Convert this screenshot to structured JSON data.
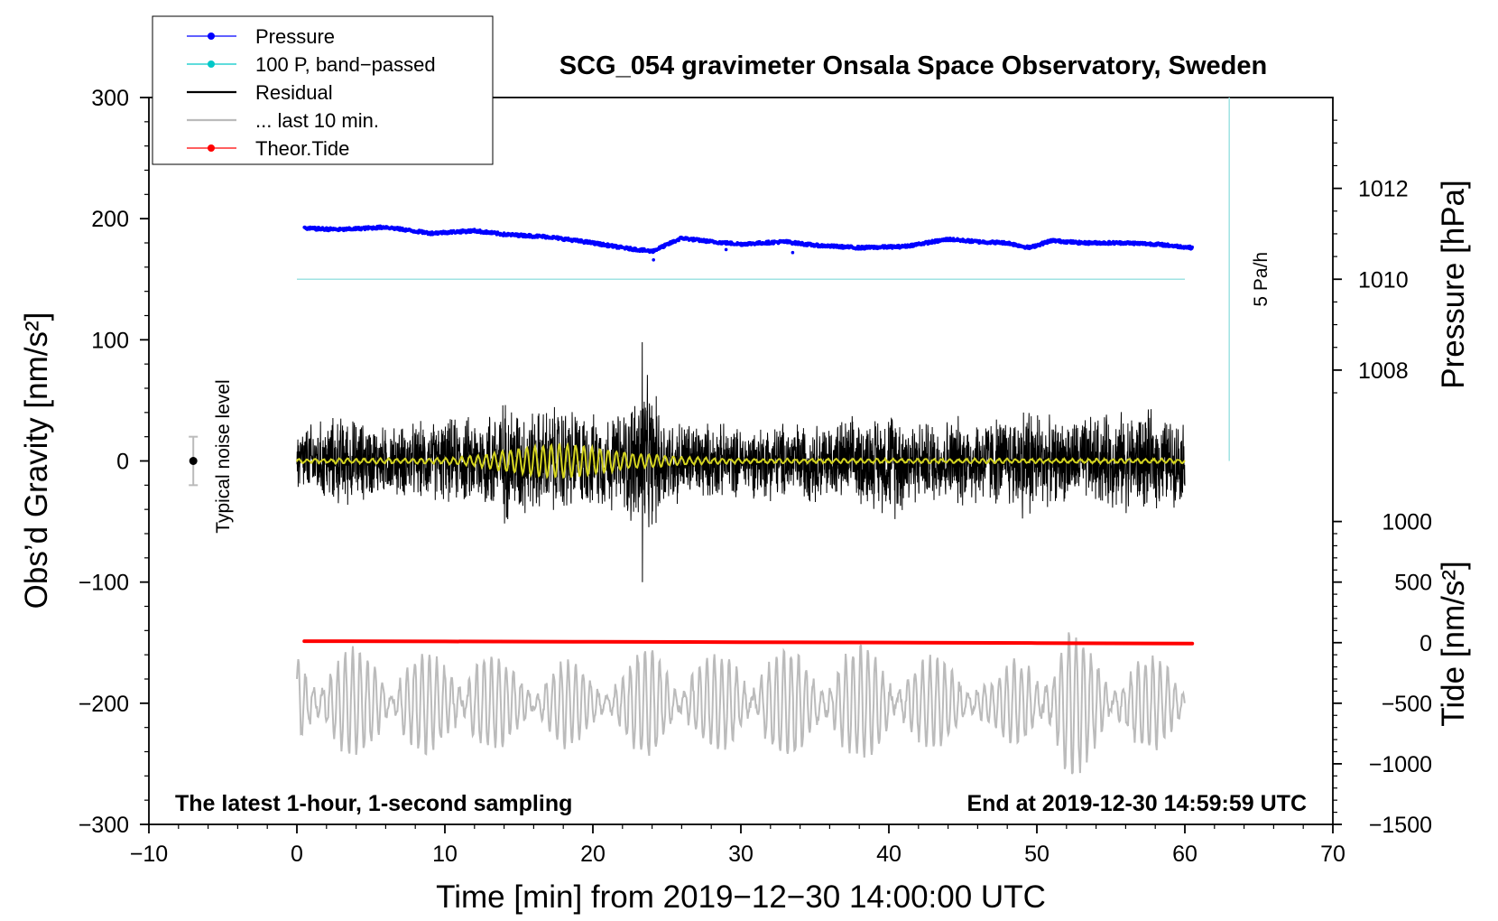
{
  "chart_data": {
    "type": "line",
    "title": "SCG_054 gravimeter Onsala Space Observatory, Sweden",
    "subtitle_left": "The latest 1-hour, 1-second sampling",
    "subtitle_right": "End at 2019-12-30 14:59:59 UTC",
    "xlabel": "Time [min] from 2019−12−30 14:00:00 UTC",
    "ylabel_left": "Obs’d Gravity [nm/s²]",
    "ylabel_right_top": "Pressure [hPa]",
    "ylabel_right_bottom": "Tide [nm/s²]",
    "xlim": [
      -10,
      70
    ],
    "ylim_left": [
      -300,
      300
    ],
    "x_ticks": [
      -10,
      0,
      10,
      20,
      30,
      40,
      50,
      60,
      70
    ],
    "x_tick_labels": [
      "−10",
      "0",
      "10",
      "20",
      "30",
      "40",
      "50",
      "60",
      "70"
    ],
    "y_ticks_left": [
      -300,
      -200,
      -100,
      0,
      100,
      200,
      300
    ],
    "y_tick_labels_left": [
      "−300",
      "−200",
      "−100",
      "0",
      "100",
      "200",
      "300"
    ],
    "pressure_ticks": [
      1008,
      1010,
      1012
    ],
    "pressure_tick_labels": [
      "1008",
      "1010",
      "1012"
    ],
    "tide_ticks": [
      -1500,
      -1000,
      -500,
      0,
      500,
      1000
    ],
    "tide_tick_labels": [
      "−1500",
      "−1000",
      "−500",
      "0",
      "500",
      "1000"
    ],
    "pressure_axis_ref": {
      "hpa": [
        1010,
        1012
      ],
      "gravity": [
        150,
        225
      ]
    },
    "tide_axis_ref": {
      "tide": [
        0,
        -1000
      ],
      "gravity": [
        -150,
        -250
      ]
    },
    "legend": [
      {
        "label": "Pressure",
        "color": "#0000ff",
        "style": "line-dot"
      },
      {
        "label": "100 P, band−passed",
        "color": "#00c8c8",
        "style": "line-dot"
      },
      {
        "label": "Residual",
        "color": "#000000",
        "style": "line"
      },
      {
        "label": "... last 10 min.",
        "color": "#bbbbbb",
        "style": "line"
      },
      {
        "label": "Theor.Tide",
        "color": "#ff0000",
        "style": "line-dot"
      }
    ],
    "annotations": {
      "noise_label": "Typical noise level",
      "noise_level": {
        "x": -7,
        "y": 0,
        "error": 20
      },
      "rate_label": "5 Pa/h",
      "rate_bar": {
        "x": 63,
        "y_from": 0,
        "y_to": 300
      }
    },
    "series": [
      {
        "name": "Pressure",
        "color": "#0000ff",
        "unit_axis": "gravity",
        "x": [
          0.5,
          3,
          6,
          9,
          12,
          14,
          17,
          20,
          22,
          24,
          26,
          28,
          30,
          33,
          35,
          38,
          41,
          44,
          46,
          48,
          49.5,
          51,
          53,
          56,
          58,
          60.5
        ],
        "y": [
          192,
          191,
          193,
          188,
          190,
          187,
          185,
          180,
          176,
          173,
          184,
          181,
          179,
          181,
          178,
          176,
          177,
          183,
          181,
          180,
          176,
          182,
          180,
          180,
          179,
          176
        ]
      },
      {
        "name": "100 P, band-passed",
        "color": "#00c8c8",
        "unit_axis": "gravity",
        "x": [
          0,
          60
        ],
        "y": [
          150,
          150
        ]
      },
      {
        "name": "Residual",
        "color": "#000000",
        "unit_axis": "gravity",
        "x_range": [
          0,
          60
        ],
        "envelope_x": [
          0,
          3,
          6,
          9,
          12,
          14,
          16,
          18,
          20,
          22,
          23.5,
          25,
          27,
          30,
          33,
          36,
          39,
          40.5,
          42,
          45,
          48,
          49.5,
          51,
          54,
          57,
          60
        ],
        "envelope_amp": [
          30,
          40,
          30,
          35,
          40,
          55,
          45,
          50,
          40,
          45,
          75,
          40,
          35,
          30,
          35,
          35,
          40,
          50,
          35,
          40,
          40,
          55,
          35,
          40,
          45,
          35
        ],
        "peak_max": 98,
        "peak_min": -100
      },
      {
        "name": "Filtered residual",
        "color": "#d4d420",
        "unit_axis": "gravity",
        "x_range": [
          0,
          60
        ],
        "envelope_x": [
          0,
          10,
          12,
          14,
          16,
          18,
          19.5,
          21,
          22.5,
          24,
          26,
          30,
          60
        ],
        "envelope_amp": [
          1.5,
          2,
          4,
          8,
          12,
          14,
          12,
          9,
          6,
          5,
          3,
          1.5,
          1.5
        ]
      },
      {
        "name": "... last 10 min.",
        "color": "#bbbbbb",
        "unit_axis": "tide",
        "baseline_tide": -500,
        "x_range": [
          0,
          60
        ],
        "envelope_x": [
          0,
          5,
          10,
          12,
          13,
          15,
          18,
          20,
          22,
          24,
          26,
          28,
          31,
          34,
          38,
          42,
          45,
          47,
          49,
          50,
          51,
          52,
          53,
          55,
          57,
          60
        ],
        "envelope_amp": [
          380,
          350,
          320,
          450,
          320,
          250,
          300,
          200,
          300,
          380,
          320,
          300,
          380,
          350,
          380,
          300,
          320,
          150,
          350,
          480,
          300,
          520,
          450,
          320,
          300,
          300
        ]
      },
      {
        "name": "Theor.Tide",
        "color": "#ff0000",
        "unit_axis": "tide",
        "x": [
          0.5,
          10,
          20,
          30,
          40,
          50,
          60.5
        ],
        "y": [
          12,
          10,
          7,
          4,
          1,
          -3,
          -8
        ]
      }
    ]
  }
}
